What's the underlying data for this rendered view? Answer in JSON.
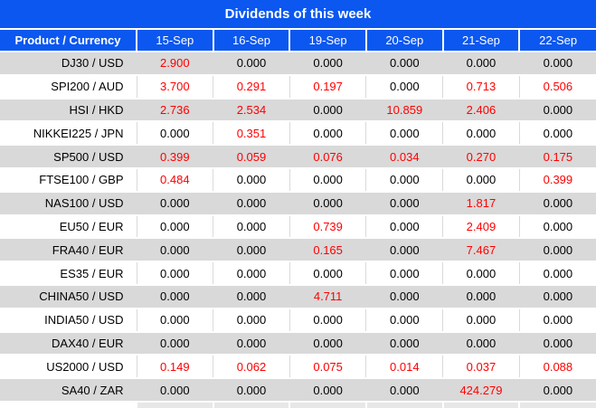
{
  "title": "Dividends of this week",
  "columns": [
    "Product / Currency",
    "15-Sep",
    "16-Sep",
    "19-Sep",
    "20-Sep",
    "21-Sep",
    "22-Sep"
  ],
  "rows": [
    {
      "product": "DJ30 / USD",
      "values": [
        "2.900",
        "0.000",
        "0.000",
        "0.000",
        "0.000",
        "0.000"
      ]
    },
    {
      "product": "SPI200 / AUD",
      "values": [
        "3.700",
        "0.291",
        "0.197",
        "0.000",
        "0.713",
        "0.506"
      ]
    },
    {
      "product": "HSI / HKD",
      "values": [
        "2.736",
        "2.534",
        "0.000",
        "10.859",
        "2.406",
        "0.000"
      ]
    },
    {
      "product": "NIKKEI225 / JPN",
      "values": [
        "0.000",
        "0.351",
        "0.000",
        "0.000",
        "0.000",
        "0.000"
      ]
    },
    {
      "product": "SP500 / USD",
      "values": [
        "0.399",
        "0.059",
        "0.076",
        "0.034",
        "0.270",
        "0.175"
      ]
    },
    {
      "product": "FTSE100 / GBP",
      "values": [
        "0.484",
        "0.000",
        "0.000",
        "0.000",
        "0.000",
        "0.399"
      ]
    },
    {
      "product": "NAS100 / USD",
      "values": [
        "0.000",
        "0.000",
        "0.000",
        "0.000",
        "1.817",
        "0.000"
      ]
    },
    {
      "product": "EU50 / EUR",
      "values": [
        "0.000",
        "0.000",
        "0.739",
        "0.000",
        "2.409",
        "0.000"
      ]
    },
    {
      "product": "FRA40 / EUR",
      "values": [
        "0.000",
        "0.000",
        "0.165",
        "0.000",
        "7.467",
        "0.000"
      ]
    },
    {
      "product": "ES35 / EUR",
      "values": [
        "0.000",
        "0.000",
        "0.000",
        "0.000",
        "0.000",
        "0.000"
      ]
    },
    {
      "product": "CHINA50 / USD",
      "values": [
        "0.000",
        "0.000",
        "4.711",
        "0.000",
        "0.000",
        "0.000"
      ]
    },
    {
      "product": "INDIA50 / USD",
      "values": [
        "0.000",
        "0.000",
        "0.000",
        "0.000",
        "0.000",
        "0.000"
      ]
    },
    {
      "product": "DAX40 / EUR",
      "values": [
        "0.000",
        "0.000",
        "0.000",
        "0.000",
        "0.000",
        "0.000"
      ]
    },
    {
      "product": "US2000 / USD",
      "values": [
        "0.149",
        "0.062",
        "0.075",
        "0.014",
        "0.037",
        "0.088"
      ]
    },
    {
      "product": "SA40 / ZAR",
      "values": [
        "0.000",
        "0.000",
        "0.000",
        "0.000",
        "424.279",
        "0.000"
      ]
    }
  ],
  "colors": {
    "header_blue": "#0b57f0",
    "stripe_gray": "#d9d9d9",
    "nonzero_red": "#ff0000",
    "zero_black": "#000000"
  }
}
